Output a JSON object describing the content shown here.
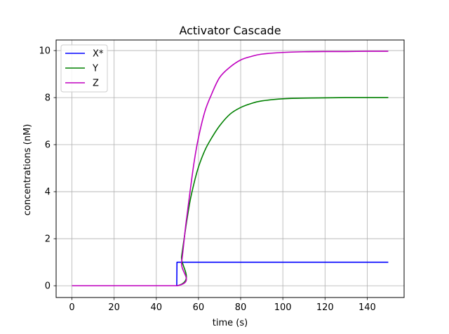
{
  "chart_data": {
    "type": "line",
    "title": "Activator Cascade",
    "xlabel": "time (s)",
    "ylabel": "concentrations (nM)",
    "xlim": [
      -7.5,
      157.5
    ],
    "ylim": [
      -0.5,
      10.45
    ],
    "xticks": [
      0,
      20,
      40,
      60,
      80,
      100,
      120,
      140
    ],
    "yticks": [
      0,
      2,
      4,
      6,
      8,
      10
    ],
    "xtick_labels": [
      "0",
      "20",
      "40",
      "60",
      "80",
      "100",
      "120",
      "140"
    ],
    "ytick_labels": [
      "0",
      "2",
      "4",
      "6",
      "8",
      "10"
    ],
    "grid": true,
    "legend_position": "top-left",
    "series": [
      {
        "name": "X*",
        "color": "#0000ff",
        "x": [
          0,
          49.7,
          49.8,
          150
        ],
        "y": [
          0,
          0,
          1,
          1
        ]
      },
      {
        "name": "Y",
        "color": "#008000",
        "x": [
          0,
          50,
          52,
          54,
          56,
          58,
          60,
          63,
          66,
          70,
          75,
          80,
          85,
          90,
          100,
          110,
          120,
          130,
          140,
          150
        ],
        "y": [
          0,
          0,
          1.25,
          2.5,
          3.6,
          4.4,
          5.05,
          5.75,
          6.25,
          6.8,
          7.3,
          7.58,
          7.75,
          7.86,
          7.95,
          7.98,
          7.99,
          8.0,
          8.0,
          8.0
        ]
      },
      {
        "name": "Z",
        "color": "#bf00bf",
        "x": [
          0,
          50,
          52,
          54,
          56,
          58,
          60,
          63,
          66,
          70,
          75,
          80,
          85,
          90,
          100,
          110,
          120,
          130,
          140,
          150
        ],
        "y": [
          0,
          0,
          1.0,
          2.6,
          4.0,
          5.3,
          6.3,
          7.4,
          8.1,
          8.85,
          9.3,
          9.6,
          9.75,
          9.85,
          9.92,
          9.95,
          9.96,
          9.96,
          9.97,
          9.97
        ]
      }
    ]
  }
}
